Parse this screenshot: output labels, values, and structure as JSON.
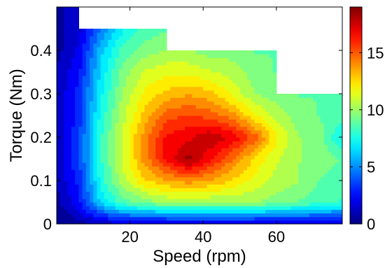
{
  "chart_data": {
    "type": "heatmap",
    "subtype": "filled-contour",
    "title": "",
    "xlabel": "Speed (rpm)",
    "ylabel": "Torque (Nm)",
    "xlim": [
      0,
      78
    ],
    "ylim": [
      0,
      0.5
    ],
    "x_ticks": [
      20,
      40,
      60
    ],
    "y_ticks": [
      0,
      0.1,
      0.2,
      0.3,
      0.4
    ],
    "colorbar": {
      "range": [
        0,
        19
      ],
      "ticks": [
        0,
        5,
        10,
        15
      ],
      "colormap": "jet"
    },
    "grid": false,
    "x": [
      0,
      6,
      12,
      18,
      24,
      30,
      36,
      42,
      48,
      54,
      60,
      66,
      72,
      78
    ],
    "y": [
      0,
      0.05,
      0.1,
      0.15,
      0.2,
      0.25,
      0.3,
      0.35,
      0.4,
      0.45,
      0.5
    ],
    "z": [
      [
        0,
        0.5,
        1,
        1.5,
        1.5,
        1.5,
        1.5,
        1.5,
        1.5,
        1.5,
        1.5,
        1.5,
        1.5,
        1.5
      ],
      [
        0.5,
        2.5,
        6.5,
        8.5,
        9.5,
        10,
        10,
        10,
        10,
        10,
        9.5,
        9,
        8.5,
        8
      ],
      [
        1,
        3,
        7.5,
        10.5,
        12.5,
        13.5,
        14,
        13.5,
        12.5,
        11.5,
        10.5,
        10,
        9,
        8.5
      ],
      [
        1,
        3.5,
        8,
        11,
        14,
        16.5,
        18.5,
        16.5,
        14.5,
        12.5,
        11,
        10,
        9.5,
        9
      ],
      [
        1,
        3.5,
        8,
        11,
        14,
        16.5,
        17,
        18,
        17,
        15,
        12,
        10,
        9.5,
        7
      ],
      [
        1,
        3,
        7.5,
        10.5,
        13,
        15,
        15.5,
        15,
        14,
        12,
        10.5,
        9.5,
        9,
        8.5
      ],
      [
        1,
        3,
        7,
        10,
        12,
        13,
        13.5,
        13,
        11.5,
        10,
        9.5,
        9,
        9,
        8.5
      ],
      [
        1,
        2.5,
        6.5,
        9.5,
        11,
        11.5,
        11.5,
        11,
        10.5,
        9.5,
        9,
        null,
        null,
        null
      ],
      [
        0.5,
        2,
        6,
        8.5,
        9.5,
        10,
        10,
        9.5,
        9.5,
        9,
        9,
        null,
        null,
        null
      ],
      [
        0.5,
        1.5,
        4.5,
        7,
        8.5,
        9,
        null,
        null,
        null,
        null,
        null,
        null,
        null,
        null
      ],
      [
        0.5,
        1.5,
        null,
        null,
        null,
        null,
        null,
        null,
        null,
        null,
        null,
        null,
        null,
        null
      ]
    ]
  }
}
